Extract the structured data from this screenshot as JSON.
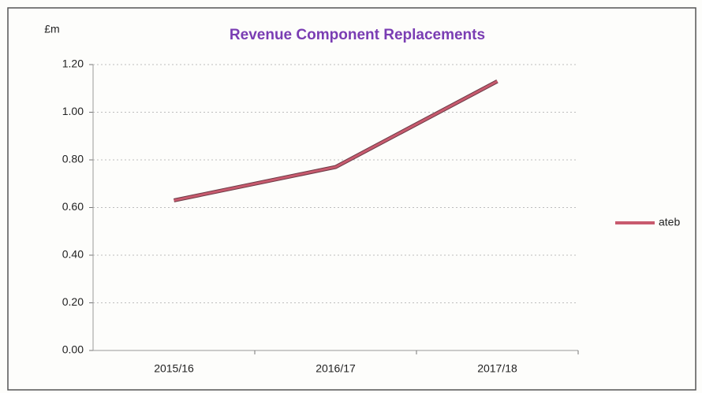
{
  "chart_data": {
    "type": "line",
    "title": "Revenue Component Replacements",
    "y_label": "£m",
    "categories": [
      "2015/16",
      "2016/17",
      "2017/18"
    ],
    "series": [
      {
        "name": "ateb",
        "color": "#c85a6e",
        "values": [
          0.63,
          0.77,
          1.13
        ]
      }
    ],
    "ylim": [
      0,
      1.2
    ],
    "yticks": [
      {
        "value": 0,
        "label": "0.00"
      },
      {
        "value": 0.2,
        "label": "0.20"
      },
      {
        "value": 0.4,
        "label": "0.40"
      },
      {
        "value": 0.6,
        "label": "0.60"
      },
      {
        "value": 0.8,
        "label": "0.80"
      },
      {
        "value": 1.0,
        "label": "1.00"
      },
      {
        "value": 1.2,
        "label": "1.20"
      }
    ],
    "grid": true,
    "legend": "right"
  }
}
